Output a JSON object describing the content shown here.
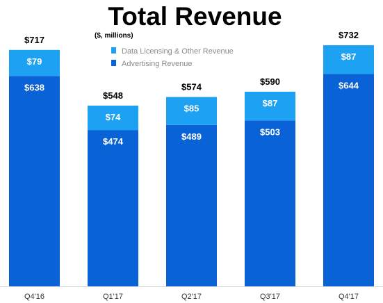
{
  "chart_data": {
    "type": "bar",
    "stacked": true,
    "title": "Total Revenue",
    "subtitle": "($, millions)",
    "categories": [
      "Q4'16",
      "Q1'17",
      "Q2'17",
      "Q3'17",
      "Q4'17"
    ],
    "series": [
      {
        "name": "Advertising Revenue",
        "color": "#0a63d6",
        "values": [
          638,
          474,
          489,
          503,
          644
        ],
        "labels": [
          "$638",
          "$474",
          "$489",
          "$503",
          "$644"
        ]
      },
      {
        "name": "Data Licensing & Other Revenue",
        "color": "#1da1f2",
        "values": [
          79,
          74,
          85,
          87,
          87
        ],
        "labels": [
          "$79",
          "$74",
          "$85",
          "$87",
          "$87"
        ]
      }
    ],
    "totals": [
      717,
      548,
      574,
      590,
      732
    ],
    "total_labels": [
      "$717",
      "$548",
      "$574",
      "$590",
      "$732"
    ],
    "legend": [
      {
        "name": "Data Licensing & Other Revenue",
        "color": "#1da1f2"
      },
      {
        "name": "Advertising Revenue",
        "color": "#0a63d6"
      }
    ],
    "legend_position": "top",
    "grid": false
  }
}
